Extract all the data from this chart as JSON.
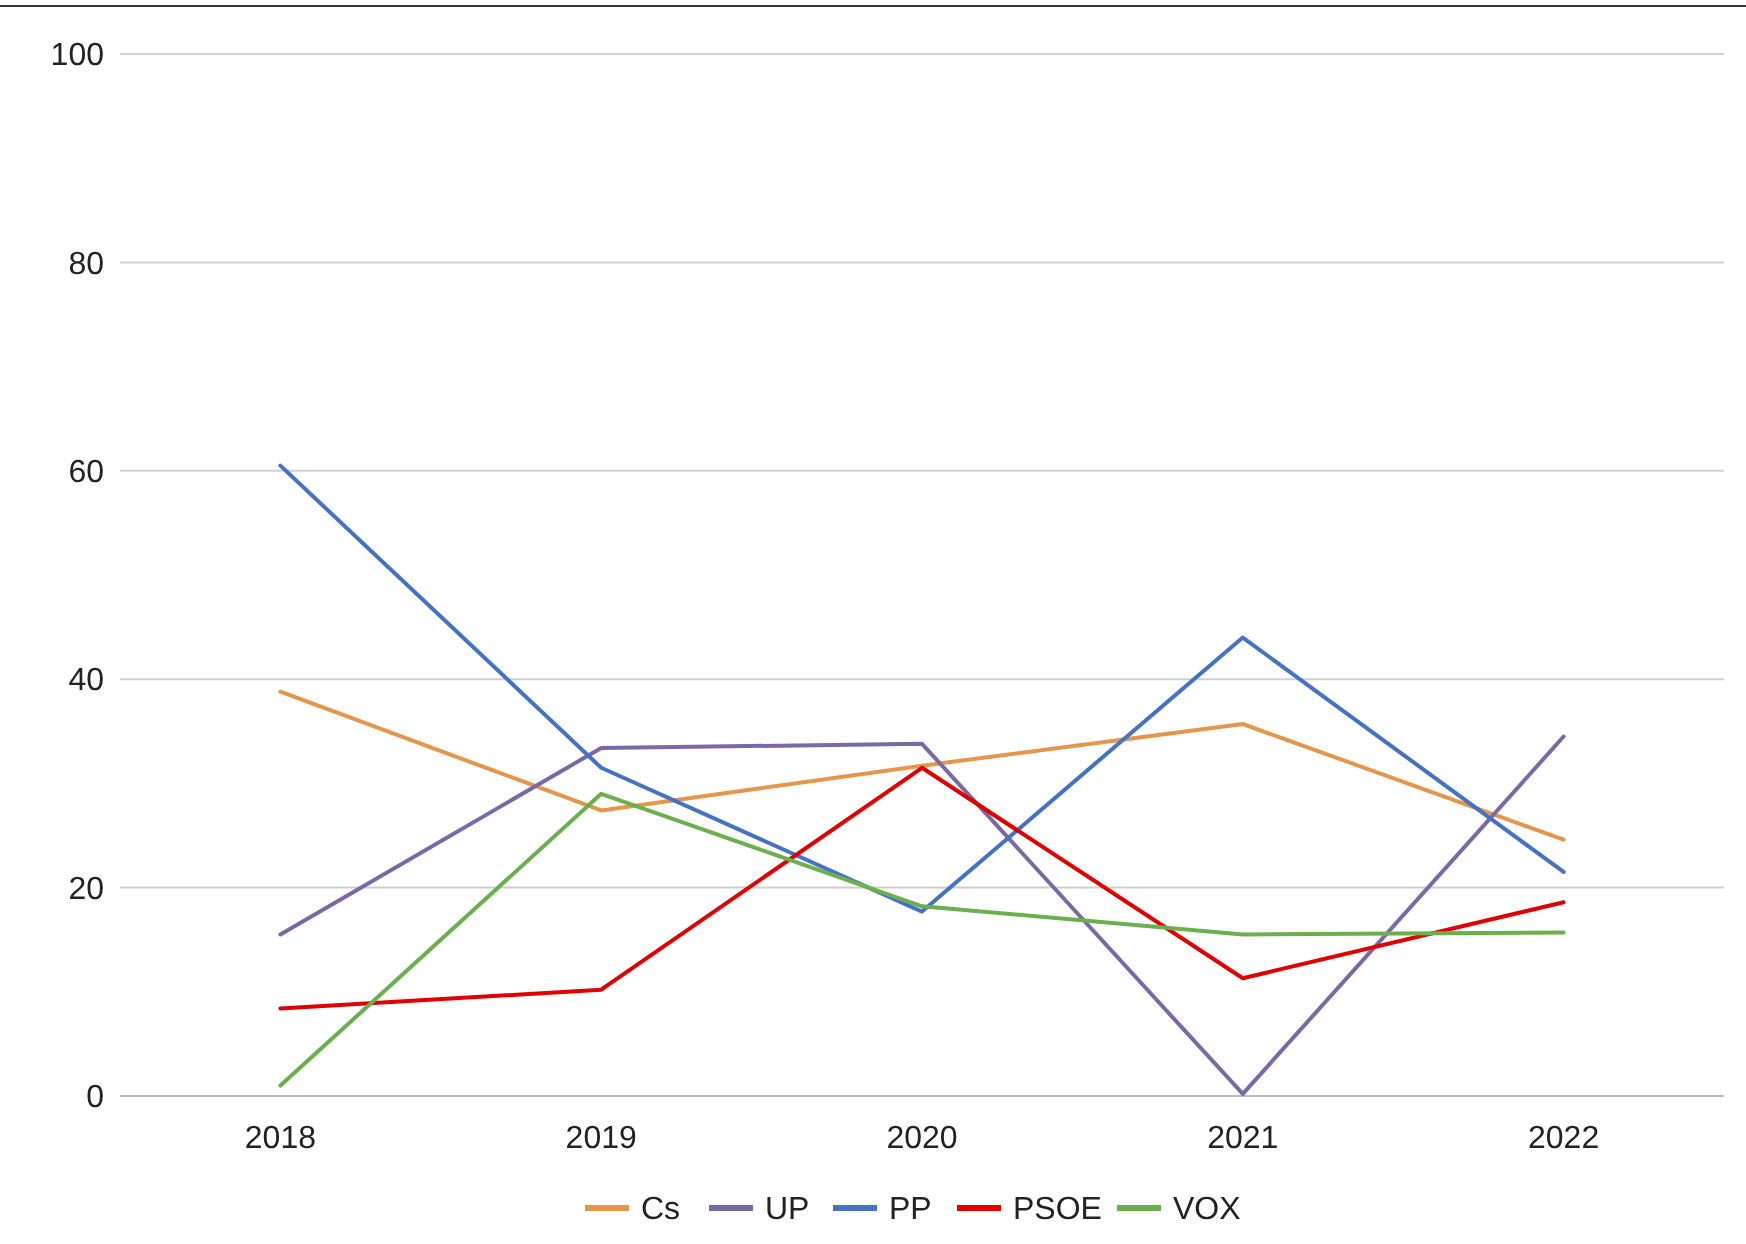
{
  "chart_data": {
    "type": "line",
    "categories": [
      "2018",
      "2019",
      "2020",
      "2021",
      "2022"
    ],
    "series": [
      {
        "name": "Cs",
        "color": "#e6964a",
        "values": [
          38.8,
          27.4,
          31.7,
          35.7,
          24.6
        ]
      },
      {
        "name": "UP",
        "color": "#7b68a6",
        "values": [
          15.5,
          33.4,
          33.8,
          0.2,
          34.5
        ]
      },
      {
        "name": "PP",
        "color": "#4472c4",
        "values": [
          60.5,
          31.5,
          17.7,
          44,
          21.5
        ]
      },
      {
        "name": "PSOE",
        "color": "#e00000",
        "values": [
          8.4,
          10.2,
          31.5,
          11.3,
          18.6
        ]
      },
      {
        "name": "VOX",
        "color": "#6ab04c",
        "values": [
          1,
          29,
          18.2,
          15.5,
          15.7
        ]
      }
    ],
    "ylim": [
      0,
      100
    ],
    "yticks": [
      0,
      20,
      40,
      60,
      80,
      100
    ],
    "grid": "y",
    "legend": "bottom",
    "marker": "none",
    "line_style": "solid"
  }
}
